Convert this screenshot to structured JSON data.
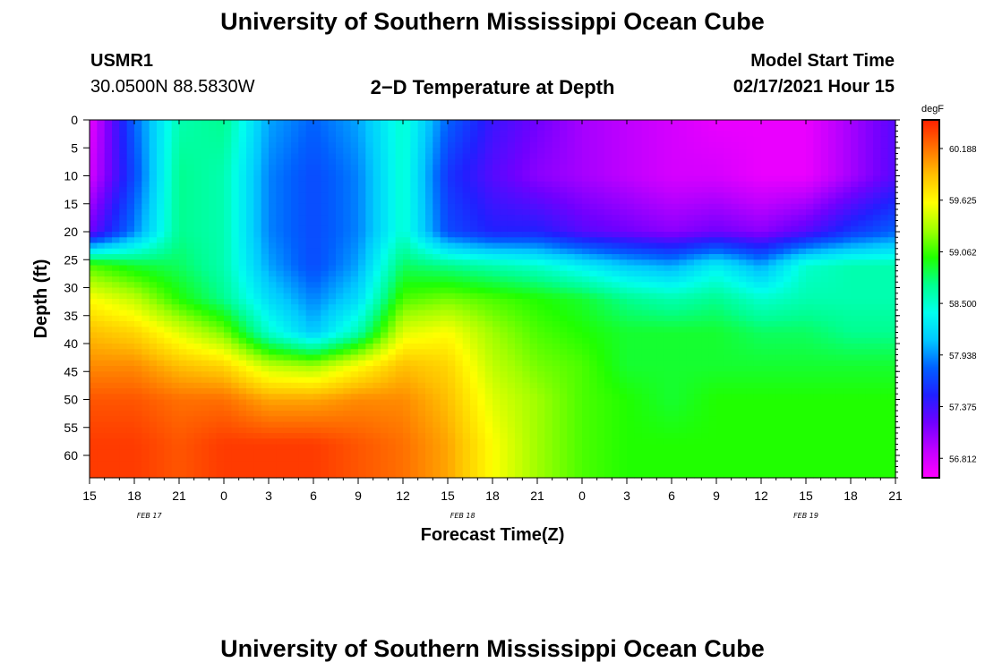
{
  "header": {
    "title_top": "University of Southern Mississippi Ocean Cube",
    "title_bottom": "University of Southern Mississippi Ocean Cube",
    "station": "USMR1",
    "coords": "30.0500N 88.5830W",
    "plot_title": "2−D Temperature at Depth",
    "model_label": "Model Start Time",
    "model_time": "02/17/2021 Hour 15"
  },
  "chart_data": {
    "type": "heatmap",
    "title": "2−D Temperature at Depth",
    "xlabel": "Forecast Time(Z)",
    "ylabel": "Depth (ft)",
    "x_tick_labels": [
      "15",
      "18",
      "21",
      "0",
      "3",
      "6",
      "9",
      "12",
      "15",
      "18",
      "21",
      "0",
      "3",
      "6",
      "9",
      "12",
      "15",
      "18",
      "21"
    ],
    "date_labels": [
      {
        "label": "FEB 17",
        "at_hour": 4
      },
      {
        "label": "FEB 18",
        "at_hour": 25
      },
      {
        "label": "FEB 19",
        "at_hour": 48
      }
    ],
    "xlim_hours": [
      0,
      54
    ],
    "ylim_ft": [
      0,
      64
    ],
    "y_ticks": [
      0,
      5,
      10,
      15,
      20,
      25,
      30,
      35,
      40,
      45,
      50,
      55,
      60
    ],
    "colorbar": {
      "units": "degF",
      "min": 56.6,
      "max": 60.5,
      "tick_values": [
        56.812,
        57.375,
        57.938,
        58.5,
        59.062,
        59.625,
        60.188
      ],
      "tick_labels": [
        "56.812",
        "57.375",
        "57.938",
        "58.500",
        "59.062",
        "59.625",
        "60.188"
      ],
      "colors": [
        "#ff00ff",
        "#c000ff",
        "#7000ff",
        "#2020ff",
        "#0060ff",
        "#00c8ff",
        "#00ffee",
        "#00ff90",
        "#20ff00",
        "#a0ff00",
        "#ffff00",
        "#ffc000",
        "#ff7000",
        "#ff2000"
      ]
    },
    "control_depth_ft": [
      0,
      10,
      20,
      26,
      32,
      38,
      44,
      50,
      58,
      64
    ],
    "columns": [
      {
        "hour": 0,
        "temps": [
          56.7,
          56.8,
          57.2,
          59.1,
          59.6,
          59.9,
          60.1,
          60.3,
          60.4,
          60.4
        ]
      },
      {
        "hour": 3,
        "temps": [
          57.8,
          57.7,
          57.9,
          58.9,
          59.4,
          59.8,
          60.1,
          60.3,
          60.4,
          60.4
        ]
      },
      {
        "hour": 6,
        "temps": [
          58.6,
          58.7,
          58.7,
          58.8,
          59.0,
          59.5,
          59.9,
          60.2,
          60.3,
          60.3
        ]
      },
      {
        "hour": 9,
        "temps": [
          58.7,
          58.6,
          58.6,
          58.6,
          58.7,
          59.2,
          59.8,
          60.2,
          60.4,
          60.4
        ]
      },
      {
        "hour": 12,
        "temps": [
          58.0,
          57.9,
          57.9,
          58.0,
          58.2,
          58.5,
          59.4,
          60.0,
          60.4,
          60.4
        ]
      },
      {
        "hour": 15,
        "temps": [
          57.8,
          57.7,
          57.7,
          57.7,
          57.9,
          58.1,
          59.3,
          60.0,
          60.4,
          60.4
        ]
      },
      {
        "hour": 18,
        "temps": [
          58.0,
          57.9,
          57.9,
          58.0,
          58.2,
          58.6,
          59.6,
          60.1,
          60.3,
          60.3
        ]
      },
      {
        "hour": 21,
        "temps": [
          58.5,
          58.5,
          58.5,
          58.8,
          59.1,
          59.5,
          59.9,
          60.1,
          60.2,
          60.2
        ]
      },
      {
        "hour": 24,
        "temps": [
          57.8,
          57.6,
          57.7,
          58.7,
          59.2,
          59.6,
          59.8,
          59.9,
          60.0,
          60.0
        ]
      },
      {
        "hour": 27,
        "temps": [
          57.4,
          57.3,
          57.5,
          58.6,
          59.1,
          59.3,
          59.4,
          59.5,
          59.6,
          59.6
        ]
      },
      {
        "hour": 30,
        "temps": [
          57.2,
          57.1,
          57.5,
          58.5,
          59.0,
          59.1,
          59.2,
          59.3,
          59.3,
          59.3
        ]
      },
      {
        "hour": 33,
        "temps": [
          57.0,
          57.0,
          57.3,
          58.3,
          58.9,
          59.0,
          59.1,
          59.1,
          59.1,
          59.1
        ]
      },
      {
        "hour": 36,
        "temps": [
          56.9,
          56.9,
          57.2,
          58.1,
          58.7,
          58.9,
          58.9,
          59.0,
          59.0,
          59.0
        ]
      },
      {
        "hour": 39,
        "temps": [
          56.8,
          56.8,
          57.1,
          58.0,
          58.6,
          58.9,
          58.9,
          58.9,
          59.0,
          59.0
        ]
      },
      {
        "hour": 42,
        "temps": [
          56.7,
          56.8,
          57.2,
          58.3,
          58.7,
          58.9,
          58.9,
          59.0,
          59.0,
          59.0
        ]
      },
      {
        "hour": 45,
        "temps": [
          56.7,
          56.7,
          57.1,
          58.0,
          58.5,
          58.8,
          58.9,
          59.0,
          59.0,
          59.0
        ]
      },
      {
        "hour": 48,
        "temps": [
          56.7,
          56.7,
          57.3,
          58.5,
          58.6,
          58.8,
          58.9,
          59.0,
          59.0,
          59.0
        ]
      },
      {
        "hour": 51,
        "temps": [
          57.0,
          57.0,
          57.6,
          58.6,
          58.6,
          58.7,
          58.9,
          59.0,
          59.0,
          59.0
        ]
      },
      {
        "hour": 54,
        "temps": [
          57.3,
          57.3,
          57.8,
          58.6,
          58.6,
          58.7,
          58.9,
          59.0,
          59.0,
          59.0
        ]
      }
    ]
  }
}
